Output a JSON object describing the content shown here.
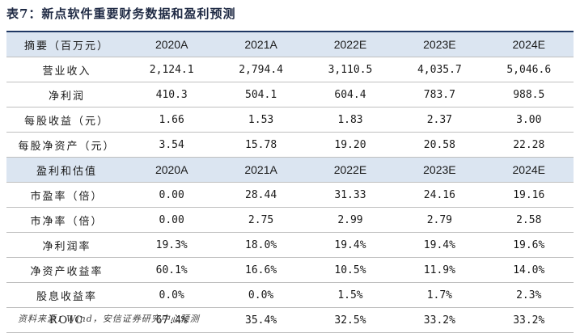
{
  "title": "表7：新点软件重要财务数据和盈利预测",
  "section1": {
    "header": {
      "label": "摘要（百万元）",
      "cols": [
        "2020A",
        "2021A",
        "2022E",
        "2023E",
        "2024E"
      ]
    },
    "rows": [
      {
        "label": "营业收入",
        "values": [
          "2,124.1",
          "2,794.4",
          "3,110.5",
          "4,035.7",
          "5,046.6"
        ]
      },
      {
        "label": "净利润",
        "values": [
          "410.3",
          "504.1",
          "604.4",
          "783.7",
          "988.5"
        ]
      },
      {
        "label": "每股收益（元）",
        "values": [
          "1.66",
          "1.53",
          "1.83",
          "2.37",
          "3.00"
        ]
      },
      {
        "label": "每股净资产（元）",
        "values": [
          "3.54",
          "15.78",
          "19.20",
          "20.58",
          "22.28"
        ]
      }
    ]
  },
  "section2": {
    "header": {
      "label": "盈利和估值",
      "cols": [
        "2020A",
        "2021A",
        "2022E",
        "2023E",
        "2024E"
      ]
    },
    "rows": [
      {
        "label": "市盈率（倍）",
        "values": [
          "0.00",
          "28.44",
          "31.33",
          "24.16",
          "19.16"
        ]
      },
      {
        "label": "市净率（倍）",
        "values": [
          "0.00",
          "2.75",
          "2.99",
          "2.79",
          "2.58"
        ]
      },
      {
        "label": "净利润率",
        "values": [
          "19.3%",
          "18.0%",
          "19.4%",
          "19.4%",
          "19.6%"
        ]
      },
      {
        "label": "净资产收益率",
        "values": [
          "60.1%",
          "16.6%",
          "10.5%",
          "11.9%",
          "14.0%"
        ]
      },
      {
        "label": "股息收益率",
        "values": [
          "0.0%",
          "0.0%",
          "1.5%",
          "1.7%",
          "2.3%"
        ]
      },
      {
        "label": "ROIC",
        "values": [
          "67.4%",
          "35.4%",
          "32.5%",
          "33.2%",
          "33.2%"
        ]
      }
    ]
  },
  "source": "资料来源：Wind，安信证券研究中心预测"
}
